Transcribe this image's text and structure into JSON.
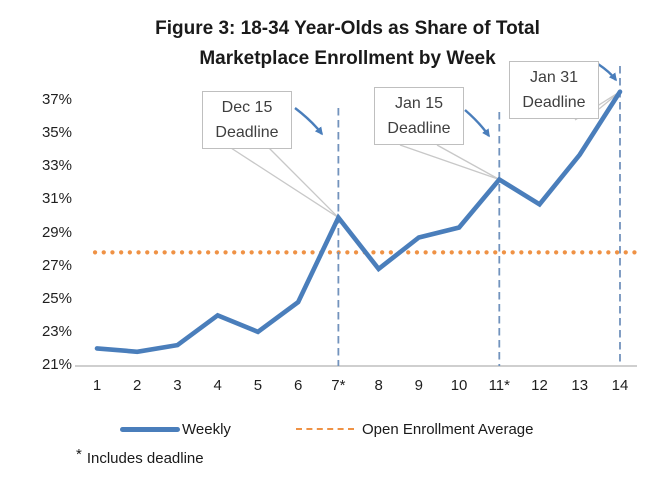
{
  "chart_data": {
    "type": "line",
    "title": "Figure 3: 18-34 Year-Olds as Share of Total Marketplace Enrollment by Week",
    "title_lines": [
      "Figure 3: 18-34 Year-Olds as Share of Total",
      "Marketplace Enrollment by Week"
    ],
    "xlabel": "",
    "ylabel": "",
    "x_labels": [
      "1",
      "2",
      "3",
      "4",
      "5",
      "6",
      "7*",
      "8",
      "9",
      "10",
      "11*",
      "12",
      "13",
      "14"
    ],
    "y_tick_labels": [
      "37%",
      "35%",
      "33%",
      "31%",
      "29%",
      "27%",
      "25%",
      "23%",
      "21%"
    ],
    "y_tick_values": [
      37,
      35,
      33,
      31,
      29,
      27,
      25,
      23,
      21
    ],
    "ylim": [
      21,
      38
    ],
    "grid": "off",
    "legend_position": "bottom",
    "series": [
      {
        "name": "Weekly",
        "values": [
          22.0,
          21.8,
          22.2,
          24.0,
          23.0,
          24.8,
          29.9,
          26.8,
          28.7,
          29.3,
          32.2,
          30.7,
          33.7,
          37.5
        ]
      }
    ],
    "average_line": {
      "name": "Open Enrollment Average",
      "value": 27.8
    },
    "deadlines": [
      {
        "week": 7,
        "line1": "Dec 15",
        "line2": "Deadline"
      },
      {
        "week": 11,
        "line1": "Jan 15",
        "line2": "Deadline"
      },
      {
        "week": 14,
        "line1": "Jan 31",
        "line2": "Deadline"
      }
    ],
    "footnote_marker": "*",
    "footnote_text": "Includes deadline",
    "colors": {
      "weekly_line": "#4a7ebb",
      "average_line": "#ef9245",
      "deadline_dash": "#7293bd",
      "axis": "#bfbfbf",
      "leader": "#c8c8c8",
      "arrow": "#4a7ebb",
      "callout_border": "#bfbfbf",
      "callout_text": "#3f3f3f"
    }
  }
}
